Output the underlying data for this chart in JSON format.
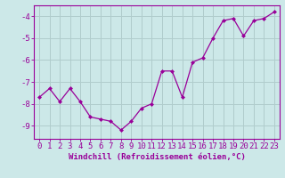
{
  "x": [
    0,
    1,
    2,
    3,
    4,
    5,
    6,
    7,
    8,
    9,
    10,
    11,
    12,
    13,
    14,
    15,
    16,
    17,
    18,
    19,
    20,
    21,
    22,
    23
  ],
  "y": [
    -7.7,
    -7.3,
    -7.9,
    -7.3,
    -7.9,
    -8.6,
    -8.7,
    -8.8,
    -9.2,
    -8.8,
    -8.2,
    -8.0,
    -6.5,
    -6.5,
    -7.7,
    -6.1,
    -5.9,
    -5.0,
    -4.2,
    -4.1,
    -4.9,
    -4.2,
    -4.1,
    -3.8
  ],
  "line_color": "#990099",
  "marker": "D",
  "marker_size": 2.0,
  "bg_color": "#cce8e8",
  "grid_color": "#b0cccc",
  "xlabel": "Windchill (Refroidissement éolien,°C)",
  "xlabel_fontsize": 6.5,
  "tick_fontsize": 6.5,
  "ylim": [
    -9.6,
    -3.5
  ],
  "xlim": [
    -0.5,
    23.5
  ],
  "yticks": [
    -9,
    -8,
    -7,
    -6,
    -5,
    -4
  ],
  "linewidth": 0.9
}
